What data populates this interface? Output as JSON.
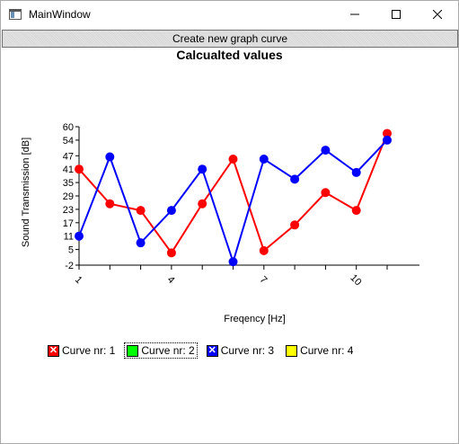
{
  "window": {
    "title": "MainWindow"
  },
  "toolbar": {
    "create_label": "Create new graph curve"
  },
  "chart_data": {
    "type": "line",
    "title": "Calcualted values",
    "xlabel": "Freqency [Hz]",
    "ylabel": "Sound Transmission [dB]",
    "x": [
      1,
      2,
      3,
      4,
      5,
      6,
      7,
      8,
      9,
      10,
      11
    ],
    "x_ticks_labeled": [
      1,
      4,
      7,
      10
    ],
    "ylim": [
      -2,
      60
    ],
    "y_ticks": [
      -2,
      5,
      11,
      17,
      23,
      29,
      35,
      41,
      47,
      54,
      60
    ],
    "series": [
      {
        "name": "Curve nr: 1",
        "color": "#ff0000",
        "values": [
          41,
          25.5,
          22.5,
          3.5,
          25.5,
          45.5,
          4.5,
          16,
          30.5,
          22.5,
          57
        ]
      },
      {
        "name": "Curve nr: 3",
        "color": "#0000ff",
        "values": [
          11,
          46.5,
          8,
          22.5,
          41,
          -0.5,
          45.5,
          36.5,
          49.5,
          39.5,
          54
        ]
      }
    ],
    "grid": false
  },
  "legend": {
    "items": [
      {
        "label": "Curve nr: 1",
        "color": "#ff0000",
        "mark": "x"
      },
      {
        "label": "Curve nr: 2",
        "color": "#00ff00",
        "mark": ""
      },
      {
        "label": "Curve nr: 3",
        "color": "#0000ff",
        "mark": "x"
      },
      {
        "label": "Curve nr: 4",
        "color": "#ffff00",
        "mark": ""
      }
    ]
  }
}
